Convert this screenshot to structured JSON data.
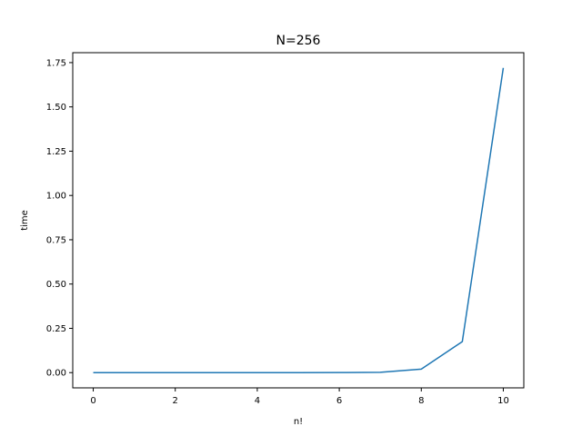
{
  "chart_data": {
    "type": "line",
    "title": "N=256",
    "xlabel": "n!",
    "ylabel": "time",
    "xlim": [
      -0.5,
      10.5
    ],
    "ylim": [
      -0.086,
      1.806
    ],
    "xticks": [
      0,
      2,
      4,
      6,
      8,
      10
    ],
    "yticks": [
      0.0,
      0.25,
      0.5,
      0.75,
      1.0,
      1.25,
      1.5,
      1.75
    ],
    "xtick_labels": [
      "0",
      "2",
      "4",
      "6",
      "8",
      "10"
    ],
    "ytick_labels": [
      "0.00",
      "0.25",
      "0.50",
      "0.75",
      "1.00",
      "1.25",
      "1.50",
      "1.75"
    ],
    "grid": false,
    "series": [
      {
        "color": "#1f77b4",
        "x": [
          0,
          1,
          2,
          3,
          4,
          5,
          6,
          7,
          8,
          9,
          10
        ],
        "values": [
          0.0,
          0.0,
          0.0,
          0.0,
          0.0,
          0.0,
          0.0005,
          0.002,
          0.02,
          0.175,
          1.72
        ]
      }
    ]
  }
}
